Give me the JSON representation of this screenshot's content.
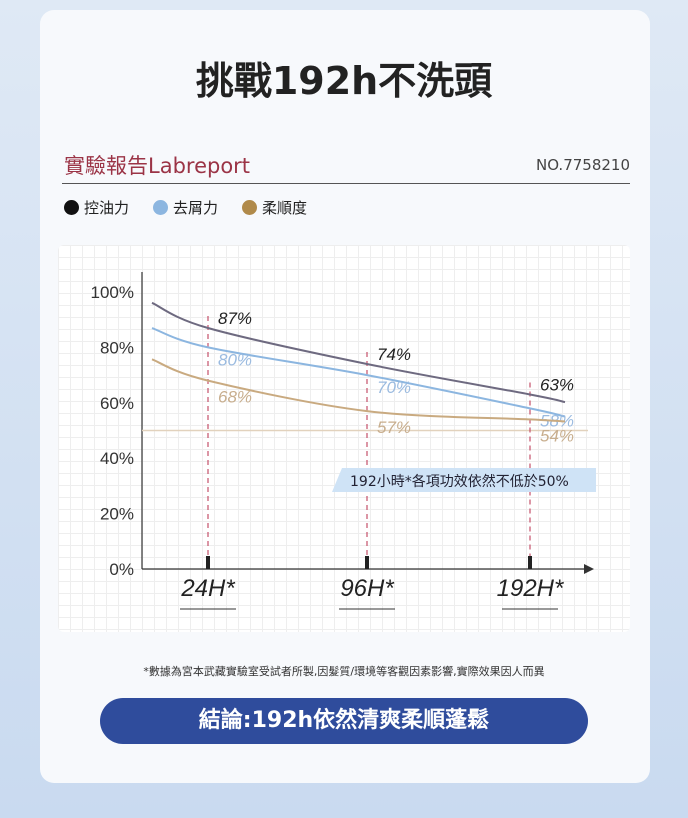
{
  "title": "挑戰192h不洗頭",
  "report": {
    "heading": "實驗報告Labreport",
    "number": "NO.7758210"
  },
  "colors": {
    "accent": "#9b3446",
    "button": "#2f4c9c"
  },
  "chart_data": {
    "type": "line",
    "categories": [
      "24H*",
      "96H*",
      "192H*"
    ],
    "ylim": [
      0,
      100
    ],
    "yticks": [
      "0%",
      "20%",
      "40%",
      "60%",
      "80%",
      "100%"
    ],
    "grid": true,
    "legend_position": "top-left",
    "reference_line": 50,
    "series": [
      {
        "name": "控油力",
        "color": "#6e6a80",
        "label_color": "#222",
        "values": [
          87,
          74,
          63
        ],
        "labels": [
          "87%",
          "74%",
          "63%"
        ]
      },
      {
        "name": "去屑力",
        "color": "#8cb6e0",
        "label_color": "#9bbbe0",
        "values": [
          80,
          70,
          58
        ],
        "labels": [
          "80%",
          "70%",
          "58%"
        ]
      },
      {
        "name": "柔順度",
        "color": "#c9aa80",
        "label_color": "#c8ae8e",
        "values": [
          68,
          57,
          54
        ],
        "labels": [
          "68%",
          "57%",
          "54%"
        ]
      }
    ],
    "legend_dots": [
      "#111111",
      "#8cb6e0",
      "#b08a4a"
    ],
    "annotation": "192小時*各項功效依然不低於50%"
  },
  "footnote": "*數據為宮本武藏實驗室受試者所製,因髮質/環境等客觀因素影響,實際效果因人而異",
  "conclusion": "結論:192h依然清爽柔順蓬鬆"
}
